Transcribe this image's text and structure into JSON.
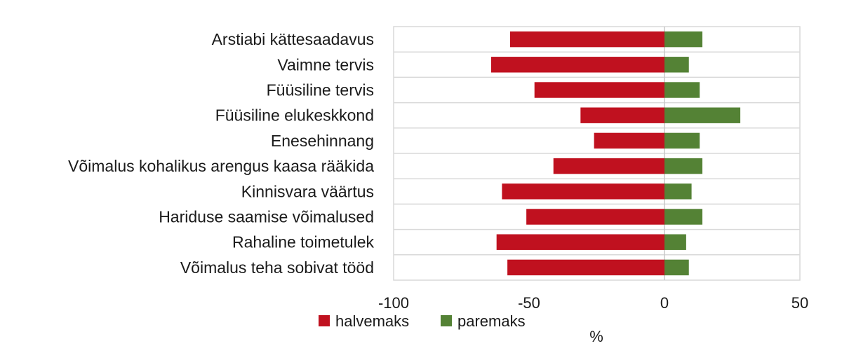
{
  "chart_data": {
    "type": "bar",
    "orientation": "horizontal",
    "stacked": true,
    "categories": [
      "Arstiabi kättesaadavus",
      "Vaimne tervis",
      "Füüsiline tervis",
      "Füüsiline elukeskkond",
      "Enesehinnang",
      "Võimalus  kohalikus arengus kaasa rääkida",
      "Kinnisvara väärtus",
      "Hariduse saamise võimalused",
      "Rahaline toimetulek",
      "Võimalus teha sobivat tööd"
    ],
    "series": [
      {
        "name": "halvemaks",
        "color": "#c0111f",
        "values": [
          -57,
          -64,
          -48,
          -31,
          -26,
          -41,
          -60,
          -51,
          -62,
          -58
        ]
      },
      {
        "name": "paremaks",
        "color": "#548235",
        "values": [
          14,
          9,
          13,
          28,
          13,
          14,
          10,
          14,
          8,
          9
        ]
      }
    ],
    "xlim": [
      -100,
      50
    ],
    "xticks": [
      "-100",
      "-50",
      "0",
      "50"
    ],
    "xlabel": "%",
    "grid": true,
    "legend_position": "bottom"
  }
}
